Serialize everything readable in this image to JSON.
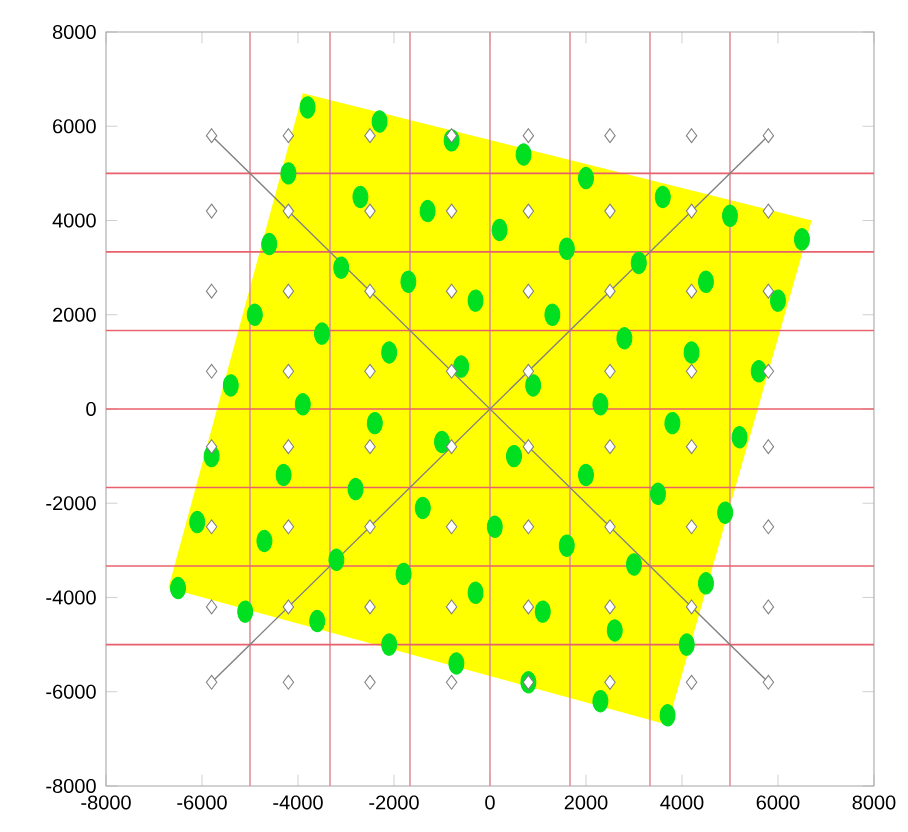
{
  "chart_data": {
    "type": "scatter",
    "xlim": [
      -8000,
      8000
    ],
    "ylim": [
      -8000,
      8000
    ],
    "xticks": [
      -8000,
      -6000,
      -4000,
      -2000,
      0,
      2000,
      4000,
      6000,
      8000
    ],
    "yticks": [
      -8000,
      -6000,
      -4000,
      -2000,
      0,
      2000,
      4000,
      6000,
      8000
    ],
    "grid": false,
    "ref_lines": [
      {
        "axis": "x",
        "value": -5000,
        "color": "#e0909c"
      },
      {
        "axis": "x",
        "value": -3333,
        "color": "#e0909c"
      },
      {
        "axis": "x",
        "value": -1667,
        "color": "#e0909c"
      },
      {
        "axis": "x",
        "value": 0,
        "color": "#e0909c"
      },
      {
        "axis": "x",
        "value": 1667,
        "color": "#e0909c"
      },
      {
        "axis": "x",
        "value": 3333,
        "color": "#e0909c"
      },
      {
        "axis": "x",
        "value": 5000,
        "color": "#e0909c"
      },
      {
        "axis": "y",
        "value": -5000,
        "color": "#e8606c"
      },
      {
        "axis": "y",
        "value": -3333,
        "color": "#e8606c"
      },
      {
        "axis": "y",
        "value": -1667,
        "color": "#e8606c"
      },
      {
        "axis": "y",
        "value": 0,
        "color": "#e8606c"
      },
      {
        "axis": "y",
        "value": 1667,
        "color": "#e8606c"
      },
      {
        "axis": "y",
        "value": 3333,
        "color": "#e8606c"
      },
      {
        "axis": "y",
        "value": 5000,
        "color": "#e8606c"
      }
    ],
    "series": [
      {
        "type": "area",
        "color": "#ffff00",
        "x": [
          -3900,
          6700,
          3700,
          -6700
        ],
        "values": [
          6700,
          4000,
          -6700,
          -3800
        ]
      },
      {
        "type": "line",
        "color": "#808080",
        "marker": "none",
        "x": [
          -5800,
          5800
        ],
        "values": [
          5800,
          -5800
        ]
      },
      {
        "type": "line",
        "color": "#808080",
        "marker": "none",
        "x": [
          -5800,
          5800
        ],
        "values": [
          -5800,
          5800
        ]
      },
      {
        "color": "#00e020",
        "marker": "circle",
        "x": [
          -3800,
          -2300,
          -800,
          700,
          2000,
          3600,
          5000,
          6500,
          -4200,
          -2700,
          -1300,
          200,
          1600,
          3100,
          4500,
          6000,
          -4600,
          -3100,
          -1700,
          -300,
          1300,
          2800,
          4200,
          5600,
          -4900,
          -3500,
          -2100,
          -600,
          900,
          2300,
          3800,
          5200,
          -5400,
          -3900,
          -2400,
          -1000,
          500,
          2000,
          3500,
          4900,
          -5800,
          -4300,
          -2800,
          -1400,
          100,
          1600,
          3000,
          4500,
          -6100,
          -4700,
          -3200,
          -1800,
          -300,
          1100,
          2600,
          4100,
          -6500,
          -5100,
          -3600,
          -2100,
          -700,
          800,
          2300,
          3700
        ],
        "values": [
          6400,
          6100,
          5700,
          5400,
          4900,
          4500,
          4100,
          3600,
          5000,
          4500,
          4200,
          3800,
          3400,
          3100,
          2700,
          2300,
          3500,
          3000,
          2700,
          2300,
          2000,
          1500,
          1200,
          800,
          2000,
          1600,
          1200,
          900,
          500,
          100,
          -300,
          -600,
          500,
          100,
          -300,
          -700,
          -1000,
          -1400,
          -1800,
          -2200,
          -1000,
          -1400,
          -1700,
          -2100,
          -2500,
          -2900,
          -3300,
          -3700,
          -2400,
          -2800,
          -3200,
          -3500,
          -3900,
          -4300,
          -4700,
          -5000,
          -3800,
          -4300,
          -4500,
          -5000,
          -5400,
          -5800,
          -6200,
          -6500
        ]
      },
      {
        "color": "#808080",
        "marker": "diamond",
        "x": [
          -5800,
          -4200,
          -2500,
          -800,
          800,
          2500,
          4200,
          5800,
          -5800,
          -4200,
          -2500,
          -800,
          800,
          2500,
          4200,
          5800,
          -5800,
          -4200,
          -2500,
          -800,
          800,
          2500,
          4200,
          5800,
          -5800,
          -4200,
          -2500,
          -800,
          800,
          2500,
          4200,
          5800,
          -5800,
          -4200,
          -2500,
          -800,
          800,
          2500,
          4200,
          5800,
          -5800,
          -4200,
          -2500,
          -800,
          800,
          2500,
          4200,
          5800,
          -5800,
          -4200,
          -2500,
          -800,
          800,
          2500,
          4200,
          5800,
          -5800,
          -4200,
          -2500,
          -800,
          800,
          2500,
          4200,
          5800
        ],
        "values": [
          5800,
          5800,
          5800,
          5800,
          5800,
          5800,
          5800,
          5800,
          4200,
          4200,
          4200,
          4200,
          4200,
          4200,
          4200,
          4200,
          2500,
          2500,
          2500,
          2500,
          2500,
          2500,
          2500,
          2500,
          800,
          800,
          800,
          800,
          800,
          800,
          800,
          800,
          -800,
          -800,
          -800,
          -800,
          -800,
          -800,
          -800,
          -800,
          -2500,
          -2500,
          -2500,
          -2500,
          -2500,
          -2500,
          -2500,
          -2500,
          -4200,
          -4200,
          -4200,
          -4200,
          -4200,
          -4200,
          -4200,
          -4200,
          -5800,
          -5800,
          -5800,
          -5800,
          -5800,
          -5800,
          -5800,
          -5800
        ]
      }
    ]
  }
}
